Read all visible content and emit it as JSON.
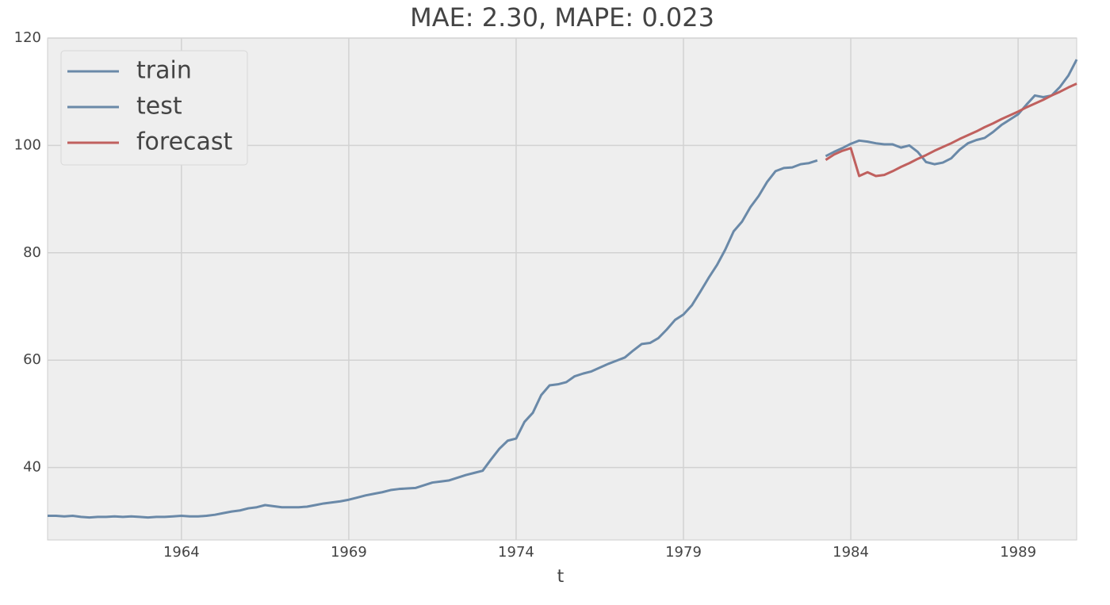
{
  "chart_data": {
    "type": "line",
    "title": "MAE: 2.30, MAPE: 0.023",
    "x_label": "t",
    "xlim": [
      1960,
      1990.75
    ],
    "ylim": [
      26.5,
      120
    ],
    "xticks": [
      1964,
      1969,
      1974,
      1979,
      1984,
      1989
    ],
    "yticks": [
      40,
      60,
      80,
      100,
      120
    ],
    "grid": true,
    "legend": "upper left",
    "series": [
      {
        "name": "train",
        "color": "#6a89a8",
        "x": [
          1960,
          1960.25,
          1960.5,
          1960.75,
          1961,
          1961.25,
          1961.5,
          1961.75,
          1962,
          1962.25,
          1962.5,
          1962.75,
          1963,
          1963.25,
          1963.5,
          1963.75,
          1964,
          1964.25,
          1964.5,
          1964.75,
          1965,
          1965.25,
          1965.5,
          1965.75,
          1966,
          1966.25,
          1966.5,
          1966.75,
          1967,
          1967.25,
          1967.5,
          1967.75,
          1968,
          1968.25,
          1968.5,
          1968.75,
          1969,
          1969.25,
          1969.5,
          1969.75,
          1970,
          1970.25,
          1970.5,
          1970.75,
          1971,
          1971.25,
          1971.5,
          1971.75,
          1972,
          1972.25,
          1972.5,
          1972.75,
          1973,
          1973.25,
          1973.5,
          1973.75,
          1974,
          1974.25,
          1974.5,
          1974.75,
          1975,
          1975.25,
          1975.5,
          1975.75,
          1976,
          1976.25,
          1976.5,
          1976.75,
          1977,
          1977.25,
          1977.5,
          1977.75,
          1978,
          1978.25,
          1978.5,
          1978.75,
          1979,
          1979.25,
          1979.5,
          1979.75,
          1980,
          1980.25,
          1980.5,
          1980.75,
          1981,
          1981.25,
          1981.5,
          1981.75,
          1982,
          1982.25,
          1982.5,
          1982.75,
          1983
        ],
        "values": [
          31,
          31,
          30.9,
          31,
          30.8,
          30.7,
          30.8,
          30.8,
          30.9,
          30.8,
          30.9,
          30.8,
          30.7,
          30.8,
          30.8,
          30.9,
          31,
          30.9,
          30.9,
          31,
          31.2,
          31.5,
          31.8,
          32,
          32.4,
          32.6,
          33,
          32.8,
          32.6,
          32.6,
          32.6,
          32.7,
          33,
          33.3,
          33.5,
          33.7,
          34,
          34.4,
          34.8,
          35.1,
          35.4,
          35.8,
          36,
          36.1,
          36.2,
          36.7,
          37.2,
          37.4,
          37.6,
          38.1,
          38.6,
          39,
          39.4,
          41.5,
          43.5,
          45,
          45.4,
          48.5,
          50.2,
          53.5,
          55.3,
          55.5,
          55.9,
          57,
          57.5,
          57.9,
          58.6,
          59.3,
          59.9,
          60.5,
          61.8,
          63,
          63.2,
          64.1,
          65.7,
          67.5,
          68.5,
          70.2,
          72.7,
          75.3,
          77.7,
          80.6,
          84,
          85.8,
          88.5,
          90.6,
          93.2,
          95.2,
          95.8,
          95.9,
          96.5,
          96.7,
          97.2
        ]
      },
      {
        "name": "test",
        "color": "#6a89a8",
        "x": [
          1983.25,
          1983.5,
          1983.75,
          1984,
          1984.25,
          1984.5,
          1984.75,
          1985,
          1985.25,
          1985.5,
          1985.75,
          1986,
          1986.25,
          1986.5,
          1986.75,
          1987,
          1987.25,
          1987.5,
          1987.75,
          1988,
          1988.25,
          1988.5,
          1988.75,
          1989,
          1989.25,
          1989.5,
          1989.75,
          1990,
          1990.25,
          1990.5,
          1990.75
        ],
        "values": [
          98,
          98.8,
          99.5,
          100.3,
          100.9,
          100.7,
          100.4,
          100.2,
          100.2,
          99.6,
          100,
          98.8,
          96.9,
          96.5,
          96.8,
          97.6,
          99.2,
          100.4,
          101,
          101.4,
          102.5,
          103.8,
          104.8,
          105.8,
          107.6,
          109.3,
          109,
          109.3,
          110.9,
          113,
          116
        ]
      },
      {
        "name": "forecast",
        "color": "#c0605e",
        "x": [
          1983.25,
          1983.5,
          1983.75,
          1984,
          1984.25,
          1984.5,
          1984.75,
          1985,
          1985.25,
          1985.5,
          1985.75,
          1986,
          1986.25,
          1986.5,
          1986.75,
          1987,
          1987.25,
          1987.5,
          1987.75,
          1988,
          1988.25,
          1988.5,
          1988.75,
          1989,
          1989.25,
          1989.5,
          1989.75,
          1990,
          1990.25,
          1990.5,
          1990.75
        ],
        "values": [
          97.3,
          98.3,
          99,
          99.5,
          94.3,
          95,
          94.3,
          94.5,
          95.2,
          96,
          96.7,
          97.5,
          98.2,
          99,
          99.7,
          100.4,
          101.2,
          101.9,
          102.6,
          103.4,
          104.1,
          104.9,
          105.6,
          106.3,
          107.1,
          107.8,
          108.5,
          109.3,
          110,
          110.8,
          111.5
        ]
      }
    ]
  }
}
